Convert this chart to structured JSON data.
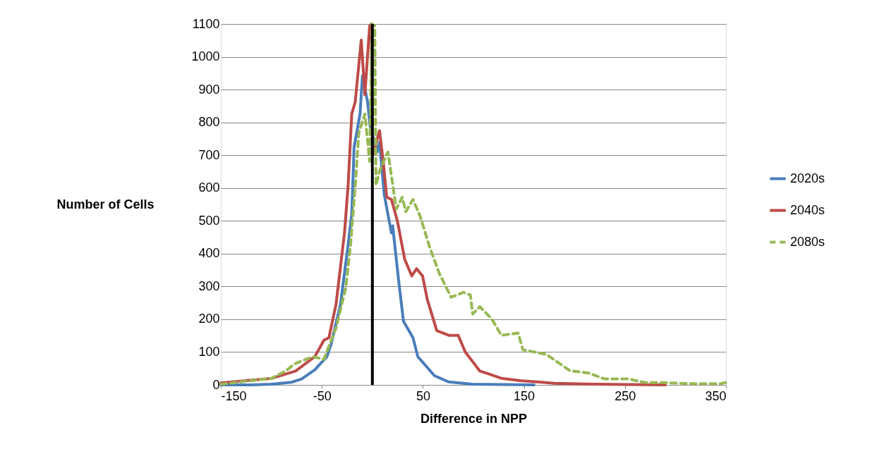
{
  "chart_data": {
    "type": "line",
    "xlabel": "Difference in NPP",
    "ylabel": "Number of Cells",
    "xlim": [
      -150,
      350
    ],
    "xticks": [
      -150,
      -50,
      50,
      150,
      250,
      350
    ],
    "ylim": [
      0,
      1100
    ],
    "yticks": [
      0,
      100,
      200,
      300,
      400,
      500,
      600,
      700,
      800,
      900,
      1000,
      1100
    ],
    "grid": "y",
    "legend": "right",
    "marker": "none",
    "ref_lines": [
      {
        "axis": "x",
        "value": 0,
        "color": "#000000"
      }
    ],
    "series": [
      {
        "name": "2020s",
        "color": "#4a7ebb",
        "line_style": "solid",
        "x": [
          -150,
          -120,
          -100,
          -80,
          -70,
          -57,
          -45,
          -41,
          -31.6,
          -24,
          -20.4,
          -18.1,
          -12.2,
          -9.8,
          -4.7,
          -2.3,
          4.8,
          7.1,
          11.8,
          18.9,
          20.1,
          26,
          30.8,
          40.2,
          45,
          61.5,
          75.7,
          99,
          130,
          160
        ],
        "values": [
          0,
          0,
          2,
          8,
          18,
          46,
          86,
          122,
          245,
          427,
          521,
          724,
          826,
          942,
          862,
          790,
          710,
          739,
          579,
          463,
          485,
          318,
          194,
          144,
          86,
          28,
          9,
          2,
          1,
          0
        ]
      },
      {
        "name": "2040s",
        "color": "#be4b48",
        "line_style": "solid",
        "x": [
          -150,
          -99.6,
          -76,
          -57,
          -48,
          -43,
          -36,
          -27.6,
          -24,
          -20.4,
          -17,
          -11,
          -7.4,
          -2.7,
          -1,
          0,
          7.1,
          10.7,
          14.2,
          18.9,
          24.8,
          28.4,
          32,
          39,
          43.8,
          49.7,
          54.4,
          63.8,
          75.7,
          85,
          92,
          99.3,
          106.4,
          113.5,
          127.7,
          146.6,
          180,
          220,
          290
        ],
        "values": [
          6,
          20,
          42,
          86,
          136,
          144,
          245,
          463,
          608,
          826,
          862,
          1051,
          884,
          1094,
          1100,
          695,
          775,
          681,
          572,
          565,
          499,
          441,
          383,
          332,
          354,
          332,
          260,
          165,
          151,
          151,
          100,
          71,
          42,
          35,
          20,
          13,
          5,
          2,
          0
        ]
      },
      {
        "name": "2080s",
        "color": "#98b954",
        "line_style": "dashed",
        "x": [
          -150,
          -100,
          -86,
          -77,
          -59,
          -48,
          -36,
          -26.3,
          -21.6,
          -16.9,
          -13.4,
          -7.4,
          -2.7,
          -0.4,
          2.4,
          3.6,
          7.1,
          15.4,
          23.7,
          29.6,
          33.1,
          40.2,
          47.3,
          56.8,
          66.2,
          78,
          89.9,
          97,
          99.3,
          106.4,
          118,
          127.7,
          144.3,
          149,
          160.8,
          172.3,
          181.6,
          195.6,
          214,
          230,
          253.6,
          270,
          288.5,
          312,
          344.8,
          350
        ],
        "values": [
          2,
          20,
          42,
          64,
          86,
          78,
          173,
          296,
          427,
          608,
          768,
          826,
          681,
          1100,
          1094,
          608,
          652,
          710,
          536,
          572,
          528,
          565,
          514,
          419,
          340,
          267,
          282,
          274,
          216,
          238,
          202,
          151,
          158,
          107,
          100,
          93,
          73,
          43,
          36,
          18,
          18,
          7,
          7,
          4,
          4,
          7
        ]
      }
    ]
  }
}
